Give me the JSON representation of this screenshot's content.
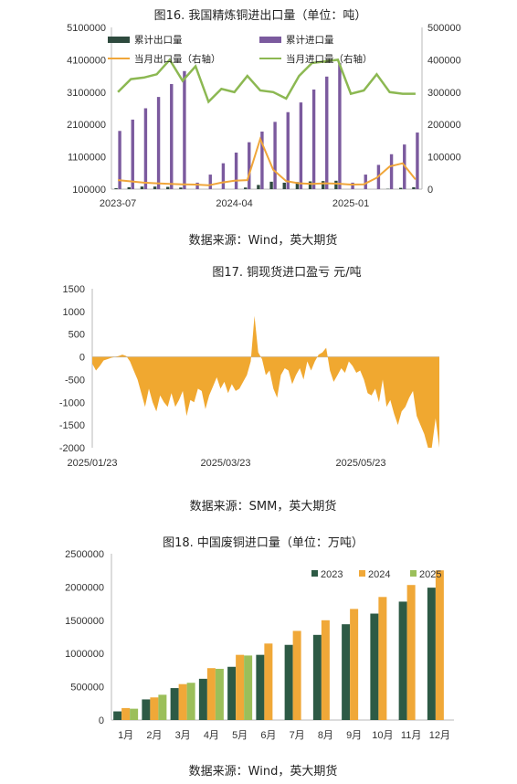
{
  "colors": {
    "export_bar": "#2e4a3e",
    "import_bar": "#7b5a9e",
    "monthly_export": "#f0a63a",
    "monthly_import": "#8cb852",
    "arb_area": "#f0a830",
    "y2023": "#2d5a45",
    "y2024": "#f0a838",
    "y2025": "#9bbf5a"
  },
  "sources": {
    "c16": "数据来源：Wind，英大期货",
    "c17": "数据来源：SMM，英大期货",
    "c18": "数据来源：Wind，英大期货"
  },
  "chart_data": [
    {
      "type": "bar",
      "title": "图16. 我国精炼铜进出口量（单位：吨）",
      "x": [
        "2023-07",
        "2023-08",
        "2023-09",
        "2023-10",
        "2023-11",
        "2023-12",
        "2024-01",
        "2024-02",
        "2024-03",
        "2024-04",
        "2024-05",
        "2024-06",
        "2024-07",
        "2024-08",
        "2024-09",
        "2024-10",
        "2024-11",
        "2024-12",
        "2025-01",
        "2025-02",
        "2025-03",
        "2025-04",
        "2025-05",
        "2025-06"
      ],
      "x_tick_labels": [
        "2023-07",
        "2024-04",
        "2025-01"
      ],
      "y_left": {
        "ylim": [
          100000,
          5100000
        ],
        "ticks": [
          "100000",
          "1100000",
          "2100000",
          "3100000",
          "4100000",
          "5100000"
        ]
      },
      "y_right": {
        "ylim": [
          0,
          500000
        ],
        "ticks": [
          "0",
          "100000",
          "200000",
          "300000",
          "400000",
          "500000"
        ]
      },
      "series": [
        {
          "name": "累计出口量",
          "kind": "bar",
          "axis": "left",
          "values": [
            130000,
            160000,
            180000,
            180000,
            170000,
            150000,
            15000,
            40000,
            70000,
            100000,
            150000,
            230000,
            330000,
            300000,
            320000,
            340000,
            350000,
            360000,
            20000,
            40000,
            80000,
            110000,
            140000,
            160000
          ]
        },
        {
          "name": "累计进口量",
          "kind": "bar",
          "axis": "left",
          "values": [
            1900000,
            2250000,
            2600000,
            2950000,
            3350000,
            3750000,
            300000,
            550000,
            900000,
            1230000,
            1550000,
            1880000,
            2180000,
            2480000,
            2780000,
            3180000,
            3580000,
            4000000,
            300000,
            550000,
            850000,
            1180000,
            1480000,
            1850000
          ]
        },
        {
          "name": "当月出口量（右轴）",
          "kind": "line",
          "axis": "right",
          "values": [
            28000,
            24000,
            20000,
            18000,
            16000,
            15000,
            14000,
            12000,
            20000,
            26000,
            28000,
            155000,
            60000,
            25000,
            18000,
            16000,
            18000,
            17000,
            14000,
            15000,
            35000,
            70000,
            80000,
            30000
          ]
        },
        {
          "name": "当月进口量（右轴）",
          "kind": "line",
          "axis": "right",
          "values": [
            300000,
            340000,
            345000,
            355000,
            400000,
            335000,
            380000,
            270000,
            310000,
            300000,
            350000,
            305000,
            300000,
            280000,
            350000,
            390000,
            395000,
            400000,
            295000,
            305000,
            355000,
            300000,
            295000,
            295000
          ]
        }
      ]
    },
    {
      "type": "area",
      "title": "图17. 铜现货进口盈亏 元/吨",
      "x_tick_labels": [
        "2025/01/23",
        "2025/03/23",
        "2025/05/23"
      ],
      "ylim": [
        -2000,
        1500
      ],
      "y_ticks": [
        "1500",
        "1000",
        "500",
        "0",
        "-500",
        "-1000",
        "-1500",
        "-2000"
      ],
      "series": [
        {
          "name": "铜现货进口盈亏",
          "x_start": "2025/01/23",
          "x_end": "2025/06/30",
          "values": [
            -150,
            -300,
            -200,
            -80,
            -50,
            -20,
            0,
            20,
            50,
            20,
            -100,
            -300,
            -500,
            -800,
            -1100,
            -700,
            -1000,
            -1200,
            -850,
            -1000,
            -1100,
            -800,
            -1100,
            -950,
            -750,
            -1300,
            -950,
            -1000,
            -700,
            -750,
            -1150,
            -850,
            -650,
            -450,
            -700,
            -550,
            -800,
            -600,
            -750,
            -700,
            -550,
            -400,
            -100,
            900,
            100,
            -50,
            -400,
            -300,
            -700,
            -900,
            -400,
            -250,
            -300,
            -600,
            -400,
            -250,
            -500,
            -100,
            -300,
            -100,
            50,
            100,
            200,
            -300,
            -550,
            -400,
            -250,
            -350,
            -100,
            -200,
            -350,
            -300,
            -500,
            -800,
            -850,
            -700,
            -1000,
            -500,
            -1100,
            -950,
            -1250,
            -1500,
            -1200,
            -1100,
            -900,
            -750,
            -1300,
            -1500,
            -1700,
            -2000,
            -2000,
            -1350,
            -2000
          ]
        }
      ]
    },
    {
      "type": "bar",
      "title": "图18. 中国废铜进口量（单位：万吨）",
      "categories": [
        "1月",
        "2月",
        "3月",
        "4月",
        "5月",
        "6月",
        "7月",
        "8月",
        "9月",
        "10月",
        "11月",
        "12月"
      ],
      "ylim": [
        0,
        2500000
      ],
      "y_ticks": [
        "0",
        "500000",
        "1000000",
        "1500000",
        "2000000",
        "2500000"
      ],
      "legend_position": "top-right",
      "series": [
        {
          "name": "2023",
          "values": [
            130000,
            310000,
            480000,
            620000,
            800000,
            980000,
            1130000,
            1280000,
            1440000,
            1600000,
            1780000,
            1990000
          ]
        },
        {
          "name": "2024",
          "values": [
            180000,
            340000,
            540000,
            780000,
            980000,
            1150000,
            1340000,
            1500000,
            1670000,
            1850000,
            2030000,
            2250000
          ]
        },
        {
          "name": "2025",
          "values": [
            170000,
            380000,
            560000,
            770000,
            970000,
            null,
            null,
            null,
            null,
            null,
            null,
            null
          ]
        }
      ]
    }
  ]
}
